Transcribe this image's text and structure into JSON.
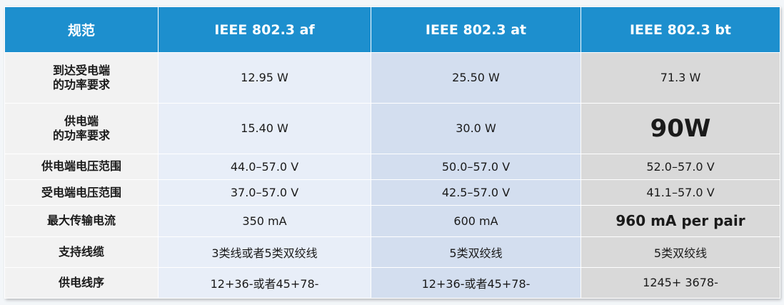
{
  "header": {
    "spec": "规范",
    "af": "IEEE 802.3 af",
    "at": "IEEE 802.3 at",
    "bt": "IEEE 802.3 bt"
  },
  "rows": [
    {
      "label_line1": "到达受电端",
      "label_line2": "的功率要求",
      "af": "12.95 W",
      "at": "25.50 W",
      "bt": "71.3 W"
    },
    {
      "label_line1": "供电端",
      "label_line2": "的功率要求",
      "af": "15.40 W",
      "at": "30.0 W",
      "bt": "90W"
    },
    {
      "label_line1": "供电端电压范围",
      "label_line2": "",
      "af": "44.0–57.0 V",
      "at": "50.0–57.0 V",
      "bt": "52.0–57.0 V"
    },
    {
      "label_line1": "受电端电压范围",
      "label_line2": "",
      "af": "37.0–57.0 V",
      "at": "42.5–57.0 V",
      "bt": "41.1–57.0 V"
    },
    {
      "label_line1": "最大传输电流",
      "label_line2": "",
      "af": "350 mA",
      "at": "600 mA",
      "bt": "960 mA per pair"
    },
    {
      "label_line1": "支持线缆",
      "label_line2": "",
      "af": "3类线或者5类双绞线",
      "at": "5类双绞线",
      "bt": "5类双绞线"
    },
    {
      "label_line1": "供电线序",
      "label_line2": "",
      "af": "12+36-或者45+78-",
      "at": "12+36-或者45+78-",
      "bt": "1245+  3678-"
    }
  ]
}
